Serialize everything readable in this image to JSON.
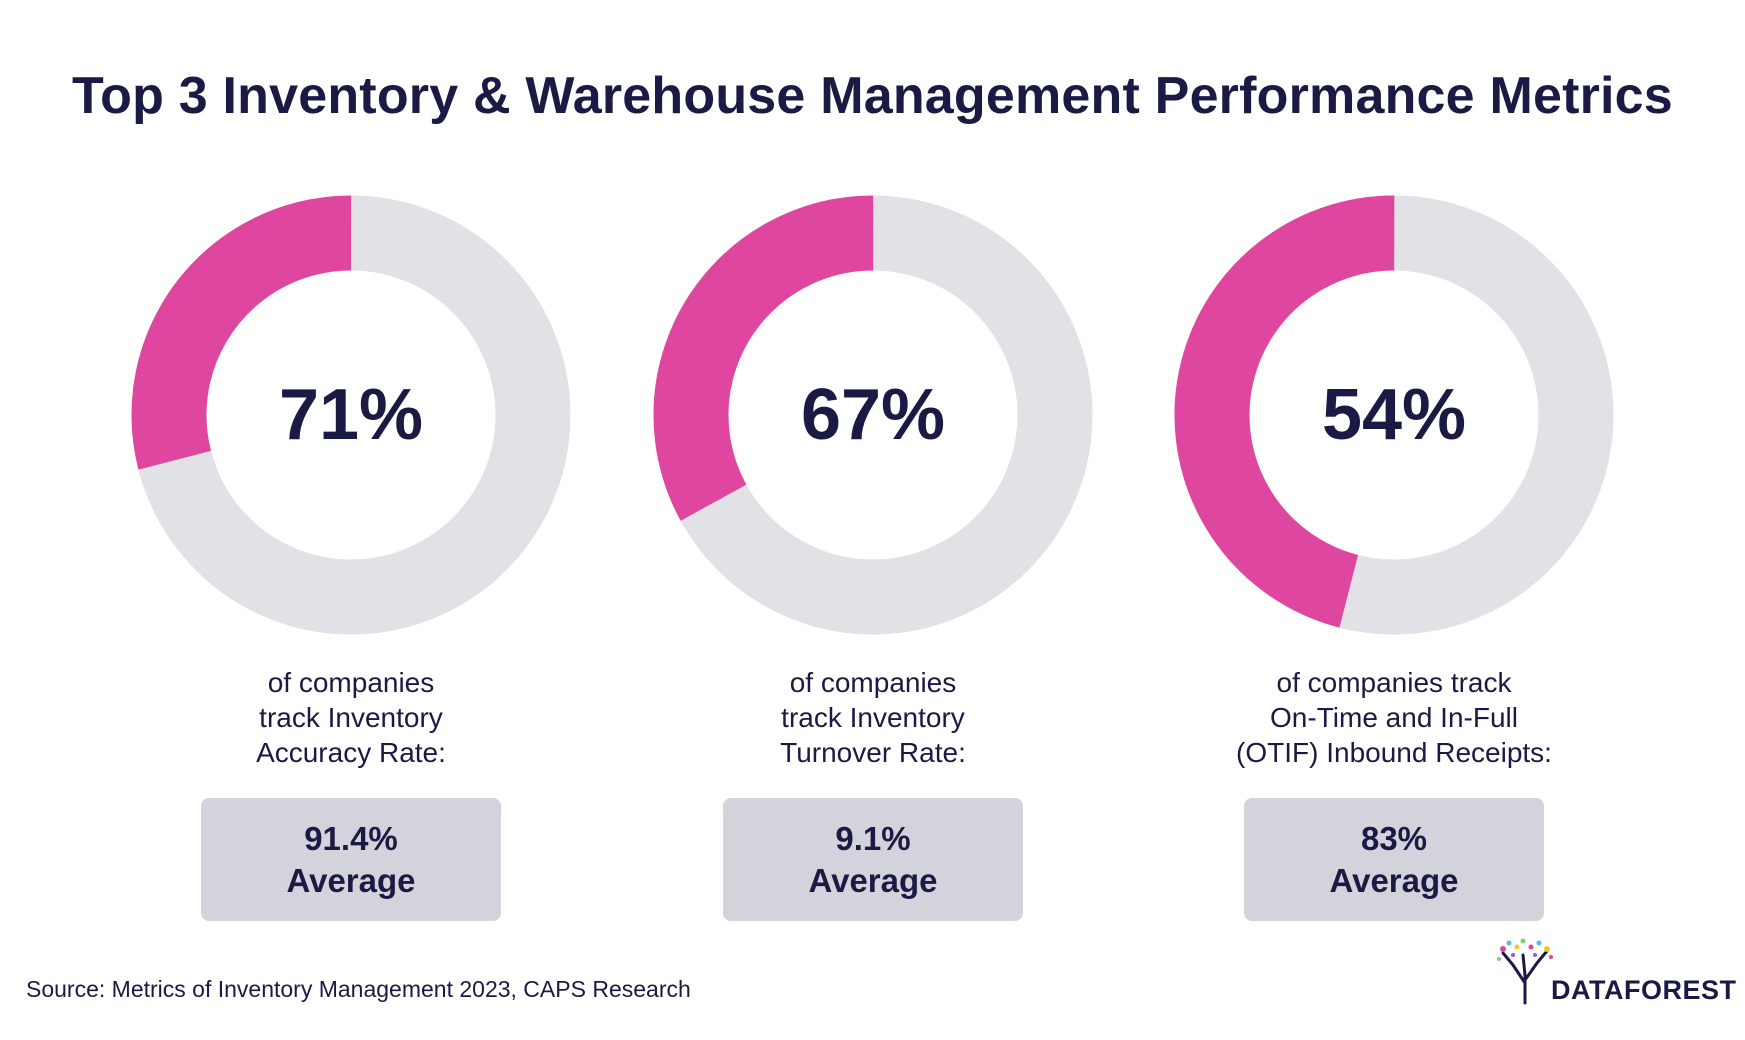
{
  "title": "Top 3 Inventory & Warehouse Management Performance Metrics",
  "colors": {
    "highlight": "#df469f",
    "track": "#e1e1e6",
    "text": "#1b1a45",
    "box": "#d3d3dc"
  },
  "chart_data": [
    {
      "type": "pie",
      "subtype": "donut",
      "value": 71,
      "label": "71%",
      "description": [
        "of companies",
        "track Inventory",
        "Accuracy Rate:"
      ],
      "average": "91.4%",
      "average_label": "Average"
    },
    {
      "type": "pie",
      "subtype": "donut",
      "value": 67,
      "label": "67%",
      "description": [
        "of companies",
        "track Inventory",
        "Turnover Rate:"
      ],
      "average": "9.1%",
      "average_label": "Average"
    },
    {
      "type": "pie",
      "subtype": "donut",
      "value": 54,
      "label": "54%",
      "description": [
        "of companies track",
        "On-Time and In-Full",
        "(OTIF) Inbound Receipts:"
      ],
      "average": "83%",
      "average_label": "Average"
    }
  ],
  "source": "Source: Metrics of Inventory Management 2023, CAPS Research",
  "logo": {
    "text": "DATAFOREST",
    "icon": "tree-logo-icon"
  }
}
